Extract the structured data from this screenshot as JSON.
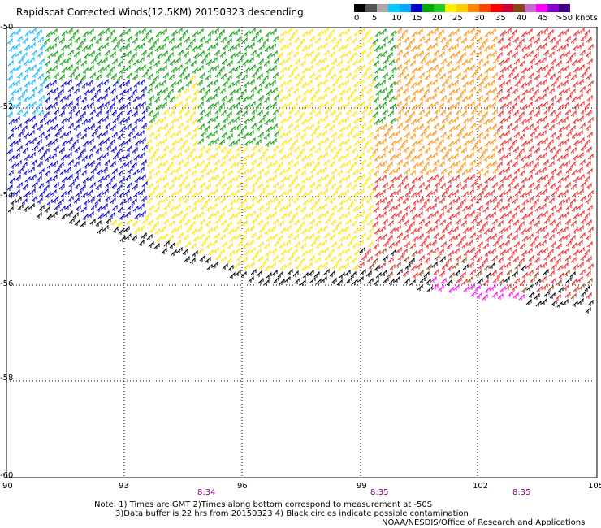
{
  "title": "Rapidscat Corrected Winds(12.5KM) 20150323 descending",
  "legend": {
    "colors": [
      "#000000",
      "#555555",
      "#a8a8a8",
      "#00ccff",
      "#00aaff",
      "#0000cc",
      "#00aa00",
      "#22cc22",
      "#ffee00",
      "#ffcc00",
      "#ff8800",
      "#ff4400",
      "#ff0000",
      "#cc0033",
      "#8b4513",
      "#cc66cc",
      "#ff00ff",
      "#8800cc",
      "#440088"
    ],
    "labels": [
      "0",
      "5",
      "10",
      "15",
      "20",
      "25",
      "30",
      "35",
      "40",
      "45",
      ">50 knots"
    ]
  },
  "map": {
    "lat_labels": [
      "-50",
      "-52",
      "-54",
      "-56",
      "-58",
      "-60"
    ],
    "lon_labels": [
      "90",
      "93",
      "96",
      "99",
      "102",
      "105"
    ],
    "time_labels": [
      "8:34",
      "8:35",
      "8:35"
    ]
  },
  "notes": {
    "line1": "Note: 1) Times are GMT 2)Times along bottom correspond to measurement at -50S",
    "line2": "3)Data buffer is 22 hrs from 20150323 4) Black circles indicate possible contamination"
  },
  "credit": "NOAA/NESDIS/Office of Research and Applications"
}
